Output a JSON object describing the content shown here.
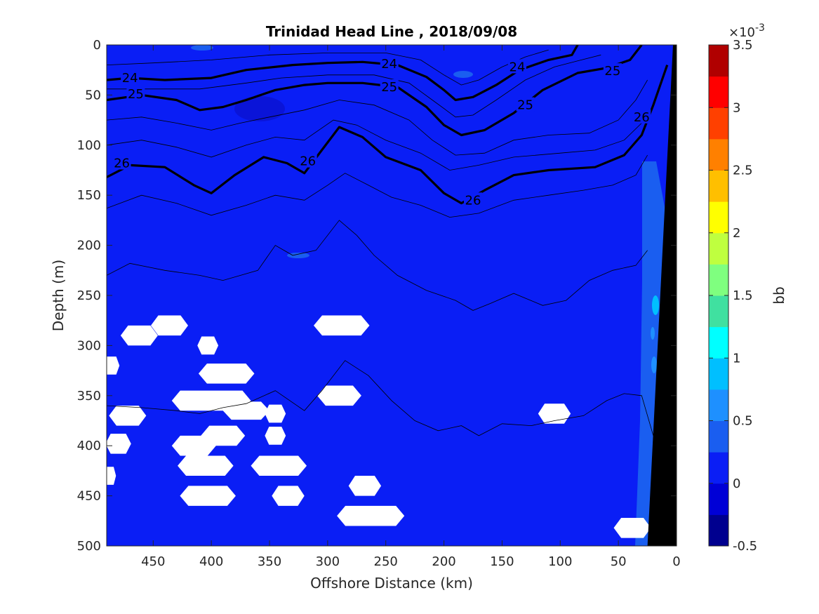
{
  "chart_data": {
    "type": "heatmap",
    "title": "Trinidad Head Line , 2018/09/08",
    "xlabel": "Offshore Distance (km)",
    "ylabel": "Depth (m)",
    "xlim": [
      490,
      0
    ],
    "ylim": [
      500,
      0
    ],
    "x_ticks": [
      450,
      400,
      350,
      300,
      250,
      200,
      150,
      100,
      50,
      0
    ],
    "y_ticks": [
      0,
      50,
      100,
      150,
      200,
      250,
      300,
      350,
      400,
      450,
      500
    ],
    "colorbar": {
      "label": "bb",
      "exponent_label": "×10",
      "exponent_power": "-3",
      "range": [
        -0.5,
        3.5
      ],
      "ticks": [
        "3.5",
        "3",
        "2.5",
        "2",
        "1.5",
        "1",
        "0.5",
        "0",
        "-0.5"
      ],
      "tick_values": [
        3.5,
        3,
        2.5,
        2,
        1.5,
        1,
        0.5,
        0,
        -0.5
      ],
      "colors": [
        "#00008f",
        "#0000d6",
        "#0a1ef5",
        "#1a5ef0",
        "#1e90ff",
        "#00bfff",
        "#00ffff",
        "#40e0a0",
        "#7fff7f",
        "#bfff3f",
        "#ffff00",
        "#ffbf00",
        "#ff8000",
        "#ff4000",
        "#ff0000",
        "#b00000"
      ]
    },
    "background_value": 0.1,
    "contour_labels": [
      {
        "text": "24",
        "x": 470,
        "depth": 33
      },
      {
        "text": "24",
        "x": 247,
        "depth": 19
      },
      {
        "text": "24",
        "x": 137,
        "depth": 22
      },
      {
        "text": "25",
        "x": 465,
        "depth": 49
      },
      {
        "text": "25",
        "x": 247,
        "depth": 42
      },
      {
        "text": "25",
        "x": 55,
        "depth": 26
      },
      {
        "text": "25",
        "x": 130,
        "depth": 60
      },
      {
        "text": "26",
        "x": 477,
        "depth": 118
      },
      {
        "text": "26",
        "x": 317,
        "depth": 116
      },
      {
        "text": "26",
        "x": 175,
        "depth": 155
      },
      {
        "text": "26",
        "x": 30,
        "depth": 72
      }
    ],
    "thick_contours": [
      {
        "level": 24,
        "points": [
          [
            490,
            35
          ],
          [
            470,
            33
          ],
          [
            440,
            35
          ],
          [
            400,
            33
          ],
          [
            370,
            25
          ],
          [
            330,
            20
          ],
          [
            300,
            18
          ],
          [
            270,
            17
          ],
          [
            240,
            20
          ],
          [
            215,
            32
          ],
          [
            200,
            45
          ],
          [
            190,
            55
          ],
          [
            175,
            52
          ],
          [
            155,
            40
          ],
          [
            135,
            25
          ],
          [
            110,
            15
          ],
          [
            90,
            10
          ],
          [
            85,
            0
          ]
        ]
      },
      {
        "level": 25,
        "points": [
          [
            490,
            55
          ],
          [
            460,
            50
          ],
          [
            430,
            55
          ],
          [
            410,
            65
          ],
          [
            390,
            62
          ],
          [
            370,
            55
          ],
          [
            345,
            45
          ],
          [
            320,
            40
          ],
          [
            300,
            38
          ],
          [
            270,
            38
          ],
          [
            240,
            42
          ],
          [
            215,
            62
          ],
          [
            200,
            80
          ],
          [
            185,
            90
          ],
          [
            165,
            85
          ],
          [
            140,
            68
          ],
          [
            115,
            45
          ],
          [
            85,
            28
          ],
          [
            60,
            23
          ],
          [
            40,
            15
          ],
          [
            30,
            0
          ]
        ]
      },
      {
        "level": 26,
        "points": [
          [
            490,
            132
          ],
          [
            470,
            120
          ],
          [
            440,
            122
          ],
          [
            415,
            140
          ],
          [
            400,
            148
          ],
          [
            380,
            130
          ],
          [
            355,
            112
          ],
          [
            335,
            118
          ],
          [
            320,
            128
          ],
          [
            305,
            105
          ],
          [
            290,
            82
          ],
          [
            270,
            92
          ],
          [
            250,
            112
          ],
          [
            220,
            125
          ],
          [
            200,
            148
          ],
          [
            185,
            158
          ],
          [
            165,
            145
          ],
          [
            140,
            130
          ],
          [
            110,
            125
          ],
          [
            70,
            122
          ],
          [
            45,
            110
          ],
          [
            30,
            90
          ],
          [
            20,
            60
          ],
          [
            8,
            20
          ]
        ]
      }
    ],
    "thin_contours": [
      {
        "points": [
          [
            490,
            20
          ],
          [
            450,
            18
          ],
          [
            400,
            15
          ],
          [
            350,
            10
          ],
          [
            300,
            8
          ],
          [
            250,
            8
          ],
          [
            220,
            15
          ],
          [
            200,
            30
          ],
          [
            185,
            40
          ],
          [
            170,
            35
          ],
          [
            150,
            22
          ],
          [
            130,
            12
          ],
          [
            110,
            5
          ]
        ]
      },
      {
        "points": [
          [
            490,
            44
          ],
          [
            450,
            44
          ],
          [
            410,
            44
          ],
          [
            370,
            38
          ],
          [
            340,
            33
          ],
          [
            300,
            30
          ],
          [
            260,
            30
          ],
          [
            230,
            38
          ],
          [
            210,
            55
          ],
          [
            190,
            72
          ],
          [
            175,
            70
          ],
          [
            155,
            55
          ],
          [
            130,
            35
          ],
          [
            105,
            22
          ],
          [
            85,
            16
          ],
          [
            65,
            10
          ]
        ]
      },
      {
        "points": [
          [
            490,
            75
          ],
          [
            460,
            72
          ],
          [
            430,
            78
          ],
          [
            400,
            85
          ],
          [
            375,
            78
          ],
          [
            350,
            72
          ],
          [
            320,
            65
          ],
          [
            290,
            55
          ],
          [
            260,
            60
          ],
          [
            230,
            75
          ],
          [
            210,
            95
          ],
          [
            190,
            110
          ],
          [
            165,
            108
          ],
          [
            140,
            95
          ],
          [
            110,
            90
          ],
          [
            75,
            88
          ],
          [
            50,
            75
          ],
          [
            35,
            55
          ],
          [
            25,
            35
          ]
        ]
      },
      {
        "points": [
          [
            490,
            100
          ],
          [
            460,
            95
          ],
          [
            430,
            102
          ],
          [
            400,
            112
          ],
          [
            370,
            100
          ],
          [
            345,
            92
          ],
          [
            320,
            95
          ],
          [
            295,
            75
          ],
          [
            275,
            80
          ],
          [
            250,
            95
          ],
          [
            220,
            108
          ],
          [
            195,
            125
          ],
          [
            170,
            120
          ],
          [
            140,
            112
          ],
          [
            100,
            108
          ],
          [
            70,
            105
          ],
          [
            45,
            95
          ],
          [
            30,
            78
          ]
        ]
      },
      {
        "points": [
          [
            490,
            163
          ],
          [
            460,
            150
          ],
          [
            430,
            158
          ],
          [
            400,
            170
          ],
          [
            370,
            160
          ],
          [
            345,
            150
          ],
          [
            320,
            155
          ],
          [
            300,
            140
          ],
          [
            285,
            128
          ],
          [
            265,
            140
          ],
          [
            245,
            152
          ],
          [
            220,
            160
          ],
          [
            195,
            172
          ],
          [
            170,
            168
          ],
          [
            140,
            155
          ],
          [
            110,
            150
          ],
          [
            80,
            145
          ],
          [
            55,
            140
          ],
          [
            35,
            130
          ],
          [
            25,
            110
          ]
        ]
      },
      {
        "points": [
          [
            490,
            230
          ],
          [
            470,
            218
          ],
          [
            440,
            225
          ],
          [
            410,
            230
          ],
          [
            390,
            235
          ],
          [
            360,
            225
          ],
          [
            345,
            200
          ],
          [
            330,
            210
          ],
          [
            310,
            205
          ],
          [
            290,
            175
          ],
          [
            275,
            190
          ],
          [
            260,
            210
          ],
          [
            240,
            230
          ],
          [
            215,
            245
          ],
          [
            190,
            255
          ],
          [
            175,
            265
          ],
          [
            160,
            258
          ],
          [
            140,
            248
          ],
          [
            115,
            260
          ],
          [
            95,
            255
          ],
          [
            75,
            235
          ],
          [
            55,
            225
          ],
          [
            35,
            220
          ],
          [
            25,
            205
          ]
        ]
      },
      {
        "points": [
          [
            490,
            360
          ],
          [
            460,
            362
          ],
          [
            430,
            365
          ],
          [
            410,
            368
          ],
          [
            390,
            362
          ],
          [
            370,
            358
          ],
          [
            345,
            345
          ],
          [
            320,
            365
          ],
          [
            305,
            345
          ],
          [
            285,
            315
          ],
          [
            265,
            330
          ],
          [
            245,
            355
          ],
          [
            225,
            375
          ],
          [
            205,
            385
          ],
          [
            185,
            380
          ],
          [
            170,
            390
          ],
          [
            150,
            378
          ],
          [
            125,
            380
          ],
          [
            105,
            375
          ],
          [
            80,
            370
          ],
          [
            60,
            355
          ],
          [
            45,
            348
          ],
          [
            30,
            350
          ],
          [
            20,
            390
          ]
        ]
      }
    ],
    "blank_regions": [
      {
        "x": 462,
        "depth": 290,
        "w": 32,
        "h": 20
      },
      {
        "x": 436,
        "depth": 280,
        "w": 32,
        "h": 20
      },
      {
        "x": 403,
        "depth": 300,
        "w": 18,
        "h": 18
      },
      {
        "x": 387,
        "depth": 328,
        "w": 48,
        "h": 20
      },
      {
        "x": 486,
        "depth": 320,
        "w": 14,
        "h": 18
      },
      {
        "x": 472,
        "depth": 370,
        "w": 32,
        "h": 20
      },
      {
        "x": 400,
        "depth": 355,
        "w": 68,
        "h": 20
      },
      {
        "x": 370,
        "depth": 365,
        "w": 40,
        "h": 18
      },
      {
        "x": 390,
        "depth": 390,
        "w": 38,
        "h": 20
      },
      {
        "x": 345,
        "depth": 368,
        "w": 18,
        "h": 18
      },
      {
        "x": 345,
        "depth": 390,
        "w": 18,
        "h": 18
      },
      {
        "x": 480,
        "depth": 398,
        "w": 22,
        "h": 20
      },
      {
        "x": 415,
        "depth": 400,
        "w": 38,
        "h": 20
      },
      {
        "x": 405,
        "depth": 420,
        "w": 48,
        "h": 20
      },
      {
        "x": 342,
        "depth": 420,
        "w": 48,
        "h": 20
      },
      {
        "x": 487,
        "depth": 430,
        "w": 10,
        "h": 18
      },
      {
        "x": 403,
        "depth": 450,
        "w": 48,
        "h": 20
      },
      {
        "x": 334,
        "depth": 450,
        "w": 28,
        "h": 20
      },
      {
        "x": 268,
        "depth": 440,
        "w": 28,
        "h": 20
      },
      {
        "x": 288,
        "depth": 280,
        "w": 48,
        "h": 20
      },
      {
        "x": 290,
        "depth": 350,
        "w": 38,
        "h": 20
      },
      {
        "x": 263,
        "depth": 470,
        "w": 58,
        "h": 20
      },
      {
        "x": 105,
        "depth": 368,
        "w": 28,
        "h": 20
      },
      {
        "x": 38,
        "depth": 482,
        "w": 32,
        "h": 20
      }
    ],
    "coastline_polygon": [
      [
        25,
        500
      ],
      [
        0,
        500
      ],
      [
        0,
        0
      ],
      [
        3,
        0
      ]
    ]
  }
}
